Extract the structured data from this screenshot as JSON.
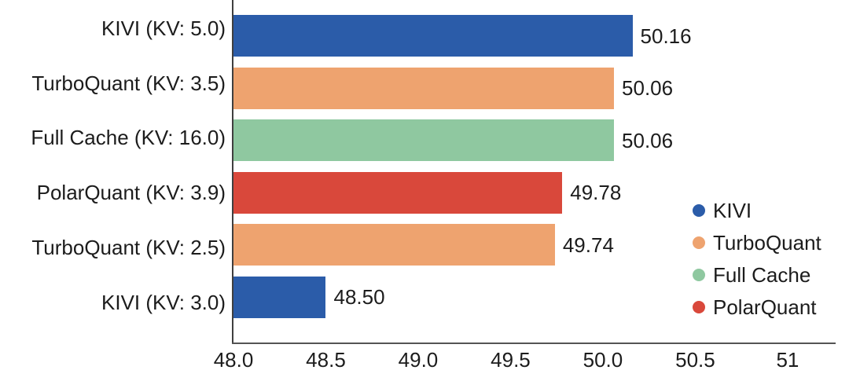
{
  "chart_data": {
    "type": "bar",
    "orientation": "horizontal",
    "title": "",
    "xlabel": "",
    "ylabel": "",
    "xlim": [
      48.0,
      51.26
    ],
    "grid": false,
    "xticks": [
      {
        "value": 48.0,
        "label": "48.0"
      },
      {
        "value": 48.5,
        "label": "48.5"
      },
      {
        "value": 49.0,
        "label": "49.0"
      },
      {
        "value": 49.5,
        "label": "49.5"
      },
      {
        "value": 50.0,
        "label": "50.0"
      },
      {
        "value": 50.5,
        "label": "50.5"
      },
      {
        "value": 51.0,
        "label": "51"
      }
    ],
    "bars": [
      {
        "category": "KIVI (KV: 5.0)",
        "series": "KIVI",
        "value": 50.16,
        "label": "50.16"
      },
      {
        "category": "TurboQuant (KV: 3.5)",
        "series": "TurboQuant",
        "value": 50.06,
        "label": "50.06"
      },
      {
        "category": "Full Cache (KV: 16.0)",
        "series": "Full Cache",
        "value": 50.06,
        "label": "50.06"
      },
      {
        "category": "PolarQuant (KV: 3.9)",
        "series": "PolarQuant",
        "value": 49.78,
        "label": "49.78"
      },
      {
        "category": "TurboQuant (KV: 2.5)",
        "series": "TurboQuant",
        "value": 49.74,
        "label": "49.74"
      },
      {
        "category": "KIVI (KV: 3.0)",
        "series": "KIVI",
        "value": 48.5,
        "label": "48.50"
      }
    ],
    "legend": {
      "position": "right-middle",
      "items": [
        {
          "label": "KIVI",
          "color": "#2b5ca9"
        },
        {
          "label": "TurboQuant",
          "color": "#eea36f"
        },
        {
          "label": "Full Cache",
          "color": "#8fc8a0"
        },
        {
          "label": "PolarQuant",
          "color": "#d9483b"
        }
      ]
    },
    "colors": {
      "axis": "#4a4a4a",
      "text": "#1c1c1c"
    }
  }
}
